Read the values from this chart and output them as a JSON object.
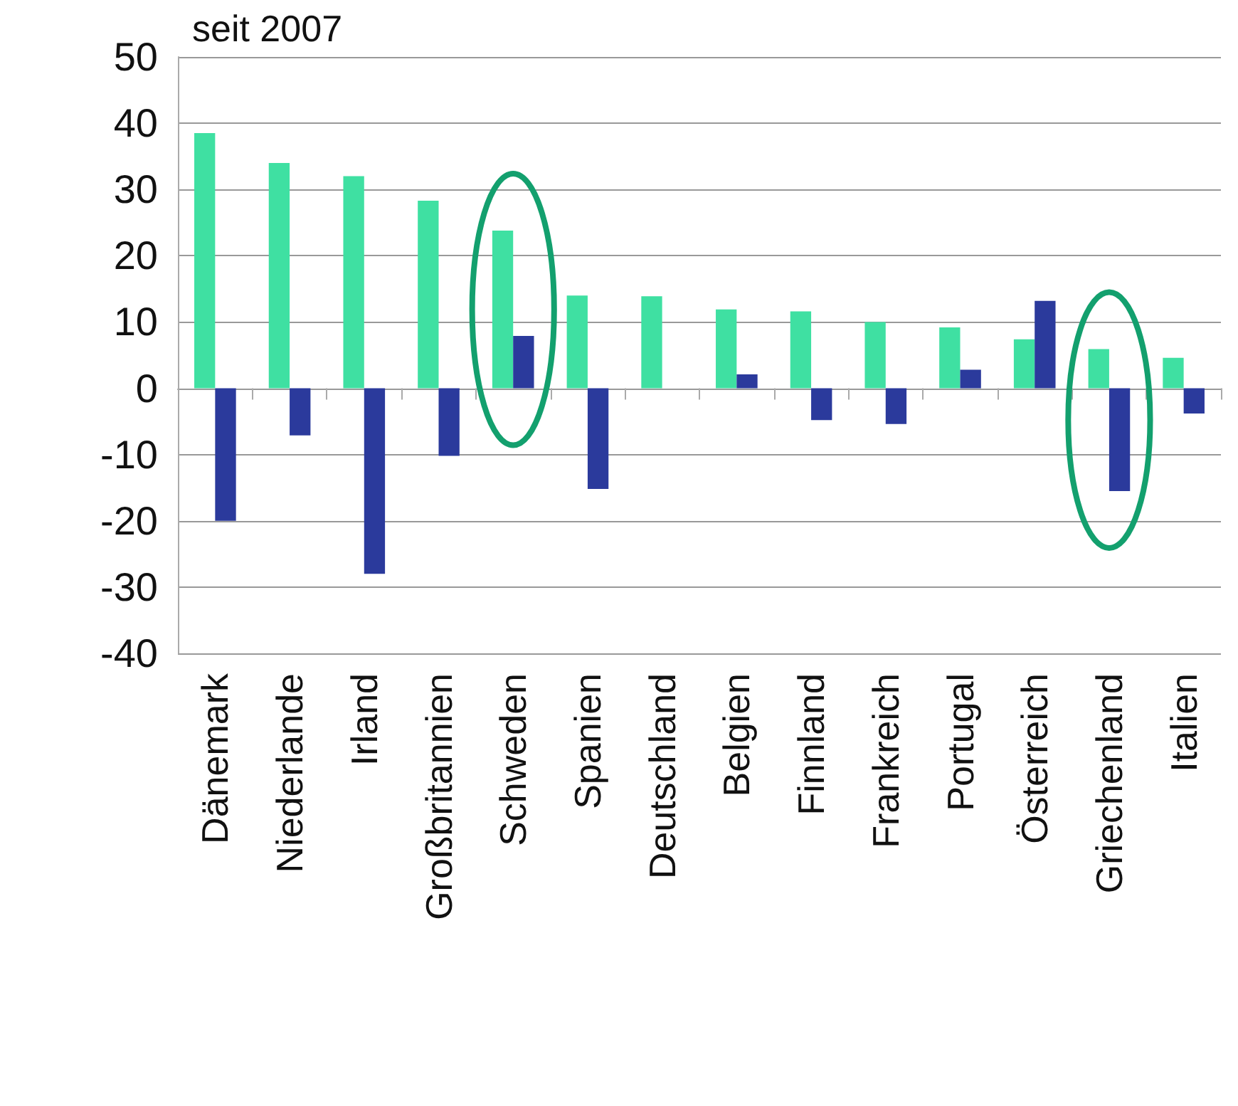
{
  "chart_data": {
    "type": "bar",
    "title": "seit 2007",
    "categories": [
      "Dänemark",
      "Niederlande",
      "Irland",
      "Großbritannien",
      "Schweden",
      "Spanien",
      "Deutschland",
      "Belgien",
      "Finnland",
      "Frankreich",
      "Portugal",
      "Österreich",
      "Griechenland",
      "Italien"
    ],
    "series": [
      {
        "color": "#3fe0a2",
        "values": [
          38.5,
          34,
          32,
          28.3,
          23.8,
          14,
          13.9,
          11.9,
          11.6,
          10,
          9.2,
          7.4,
          5.9,
          4.6
        ]
      },
      {
        "color": "#2b3a9c",
        "values": [
          -20,
          -7.1,
          -28,
          -10.2,
          7.9,
          -15.2,
          null,
          2.1,
          -4.8,
          -5.4,
          2.8,
          13.2,
          -15.5,
          -3.8
        ]
      }
    ],
    "ylim": [
      -40,
      50
    ],
    "yticks": [
      -40,
      -30,
      -20,
      -10,
      0,
      10,
      20,
      30,
      40,
      50
    ],
    "grid": "y"
  }
}
